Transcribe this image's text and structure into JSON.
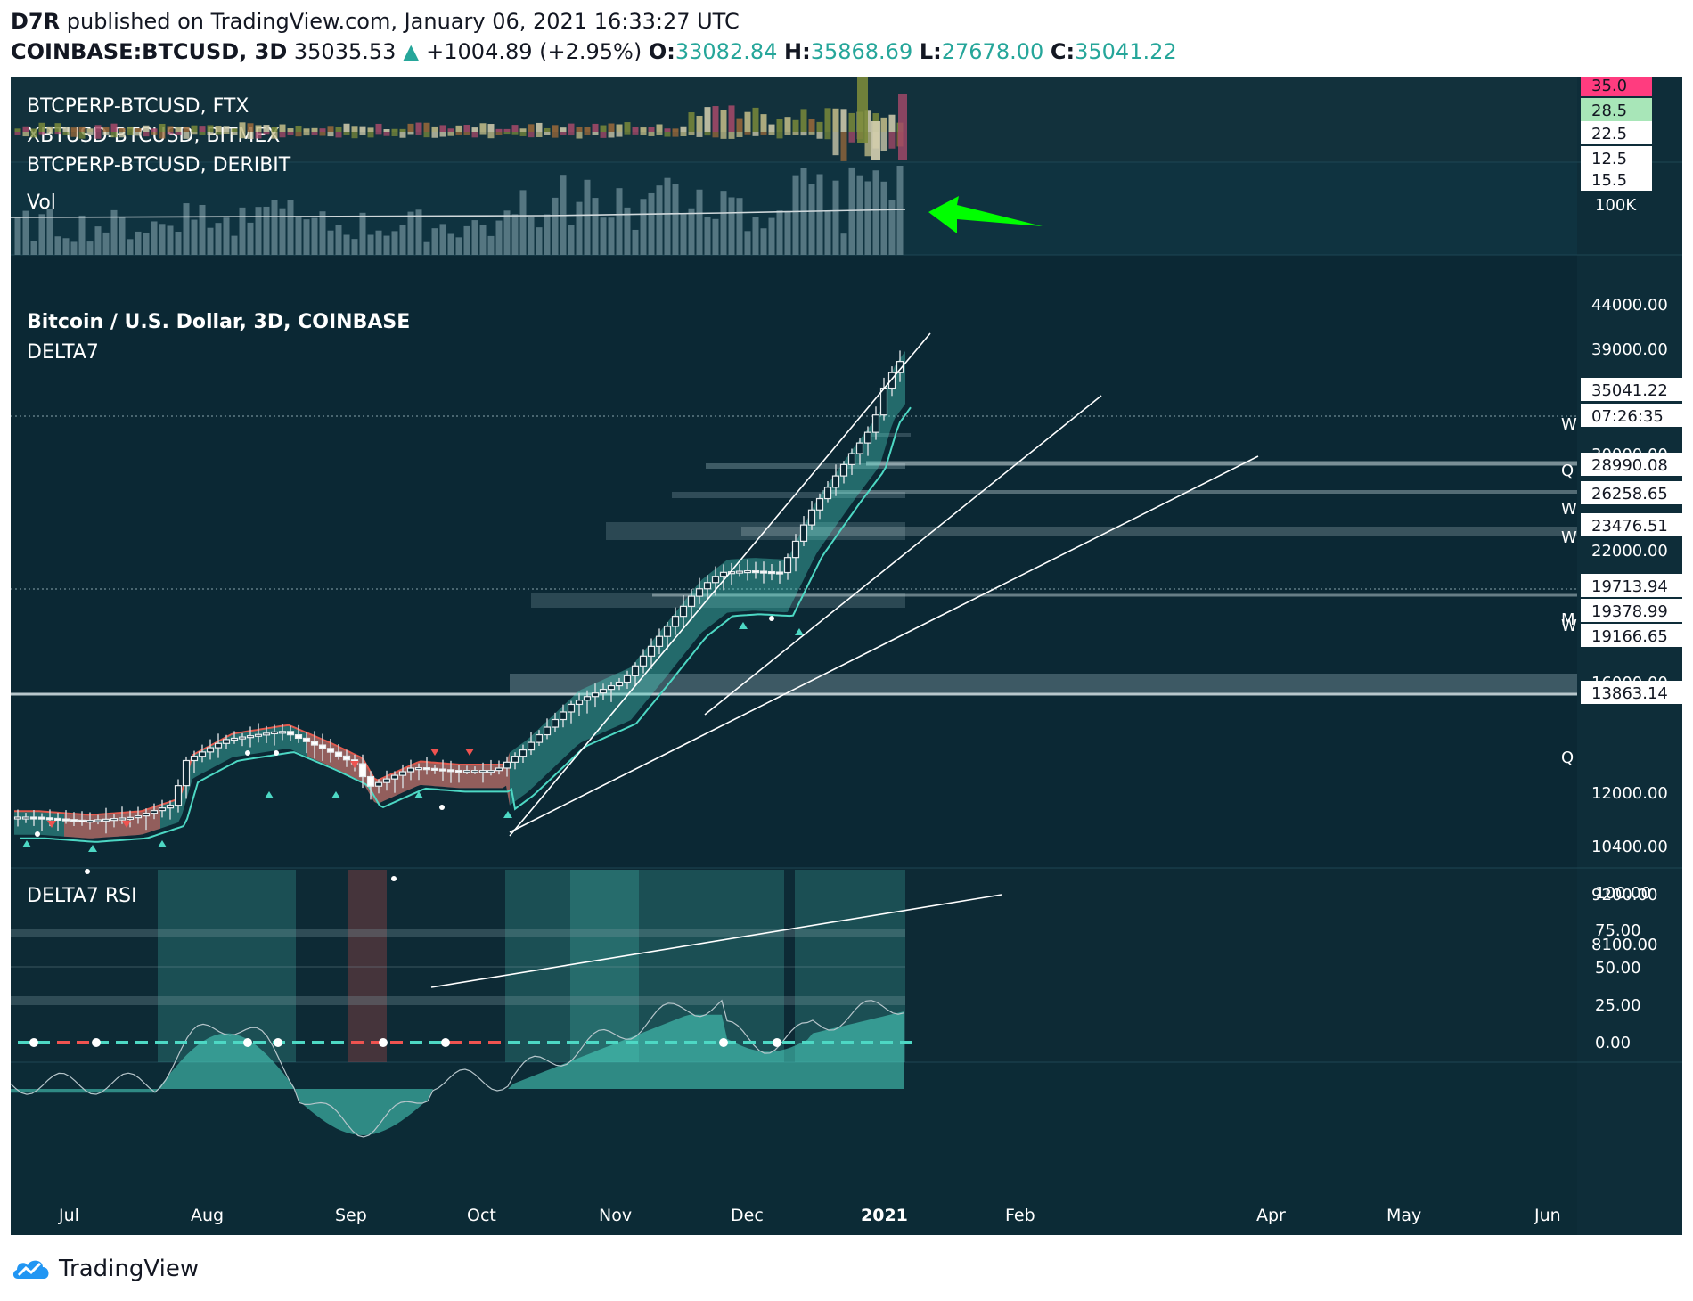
{
  "header": {
    "publisher": "D7R",
    "published_text": "published on TradingView.com, January 06, 2021 16:33:27 UTC",
    "symbol": "COINBASE:BTCUSD, 3D",
    "last": "35035.53",
    "change": "+1004.89 (+2.95%)",
    "o_label": "O:",
    "o": "33082.84",
    "h_label": "H:",
    "h": "35868.69",
    "l_label": "L:",
    "l": "27678.00",
    "c_label": "C:",
    "c": "35041.22"
  },
  "panes": {
    "funding": {
      "labels": [
        "BTCPERP-BTCUSD, FTX",
        "XBTUSD-BTCUSD, BITMEX",
        "BTCPERP-BTCUSD, DERIBIT"
      ],
      "axis": [
        "35.0",
        "28.5",
        "22.5",
        "12.5",
        "15.5"
      ]
    },
    "volume": {
      "label": "Vol",
      "axis": "100K"
    },
    "main": {
      "title": "Bitcoin / U.S. Dollar, 3D, COINBASE",
      "indicator": "DELTA7",
      "price_ticks": [
        "44000.00",
        "39000.00",
        "22000.00",
        "16000.00",
        "12000.00",
        "10400.00",
        "9200.00",
        "8100.00"
      ],
      "partial_tick": "30000.00",
      "price_tags": [
        "35041.22",
        "07:26:35",
        "28990.08",
        "26258.65",
        "23476.51",
        "19713.94",
        "19378.99",
        "19166.65",
        "13863.14"
      ],
      "zone_letters": [
        "W",
        "Q",
        "W",
        "W",
        "M",
        "W",
        "Q"
      ]
    },
    "rsi": {
      "label": "DELTA7 RSI",
      "ticks": [
        "100.00",
        "75.00",
        "50.00",
        "25.00",
        "0.00"
      ]
    },
    "x_axis": [
      "Jul",
      "Aug",
      "Sep",
      "Oct",
      "Nov",
      "Dec",
      "2021",
      "Feb",
      "Apr",
      "May",
      "Jun"
    ]
  },
  "colors": {
    "background": "#0c2b36",
    "bull": "#4dd8c4",
    "bear": "#ef5350",
    "arrow": "#00ff00"
  },
  "footer": {
    "brand": "TradingView",
    "logo_icon": "tradingview-cloud-icon"
  },
  "chart_data": {
    "type": "candlestick",
    "title": "Bitcoin / U.S. Dollar, 3D, COINBASE",
    "y_scale": "log",
    "ylim": [
      8100,
      44000
    ],
    "x_ticks": [
      "Jul",
      "Aug",
      "Sep",
      "Oct",
      "Nov",
      "Dec",
      "2021",
      "Feb",
      "Apr",
      "May",
      "Jun"
    ],
    "close_path": [
      [
        "2020-06-21",
        9250
      ],
      [
        "2020-07-03",
        9150
      ],
      [
        "2020-07-15",
        9250
      ],
      [
        "2020-07-24",
        9600
      ],
      [
        "2020-07-27",
        10900
      ],
      [
        "2020-08-05",
        11600
      ],
      [
        "2020-08-17",
        11900
      ],
      [
        "2020-08-26",
        11300
      ],
      [
        "2020-09-02",
        10800
      ],
      [
        "2020-09-05",
        10100
      ],
      [
        "2020-09-15",
        10700
      ],
      [
        "2020-09-24",
        10600
      ],
      [
        "2020-10-04",
        10600
      ],
      [
        "2020-10-10",
        11200
      ],
      [
        "2020-10-22",
        12900
      ],
      [
        "2020-11-03",
        13800
      ],
      [
        "2020-11-10",
        15400
      ],
      [
        "2020-11-19",
        17800
      ],
      [
        "2020-11-25",
        18900
      ],
      [
        "2020-12-01",
        19000
      ],
      [
        "2020-12-09",
        18900
      ],
      [
        "2020-12-16",
        22500
      ],
      [
        "2020-12-25",
        26300
      ],
      [
        "2020-12-31",
        29000
      ],
      [
        "2021-01-03",
        33100
      ],
      [
        "2021-01-06",
        35041
      ]
    ],
    "levels": [
      35041.22,
      28990.08,
      26258.65,
      23476.51,
      19713.94,
      19378.99,
      19166.65,
      13863.14
    ],
    "rsi_ticks": [
      100,
      75,
      50,
      25,
      0
    ]
  }
}
